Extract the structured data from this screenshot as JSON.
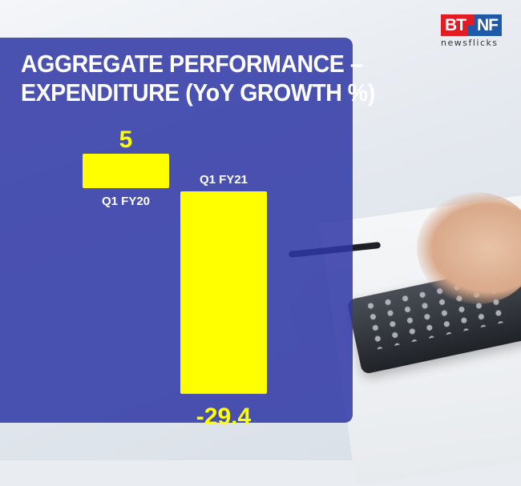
{
  "title_lines": [
    "AGGREGATE PERFORMANCE –",
    "EXPENDITURE (YoY GROWTH %)"
  ],
  "logo": {
    "part1": "BT",
    "part2": "NF",
    "subtitle": "newsflicks"
  },
  "colors": {
    "panel": "#2e37a5",
    "bar": "#ffff00",
    "text": "#ffffff",
    "value_text": "#ffff00"
  },
  "chart_data": {
    "type": "bar",
    "title": "AGGREGATE PERFORMANCE – EXPENDITURE (YoY GROWTH %)",
    "categories": [
      "Q1 FY20",
      "Q1 FY21"
    ],
    "values": [
      5,
      -29.4
    ],
    "value_labels": [
      "5",
      "-29.4"
    ],
    "ylabel": "",
    "xlabel": "",
    "grid": false,
    "legend": "none"
  }
}
